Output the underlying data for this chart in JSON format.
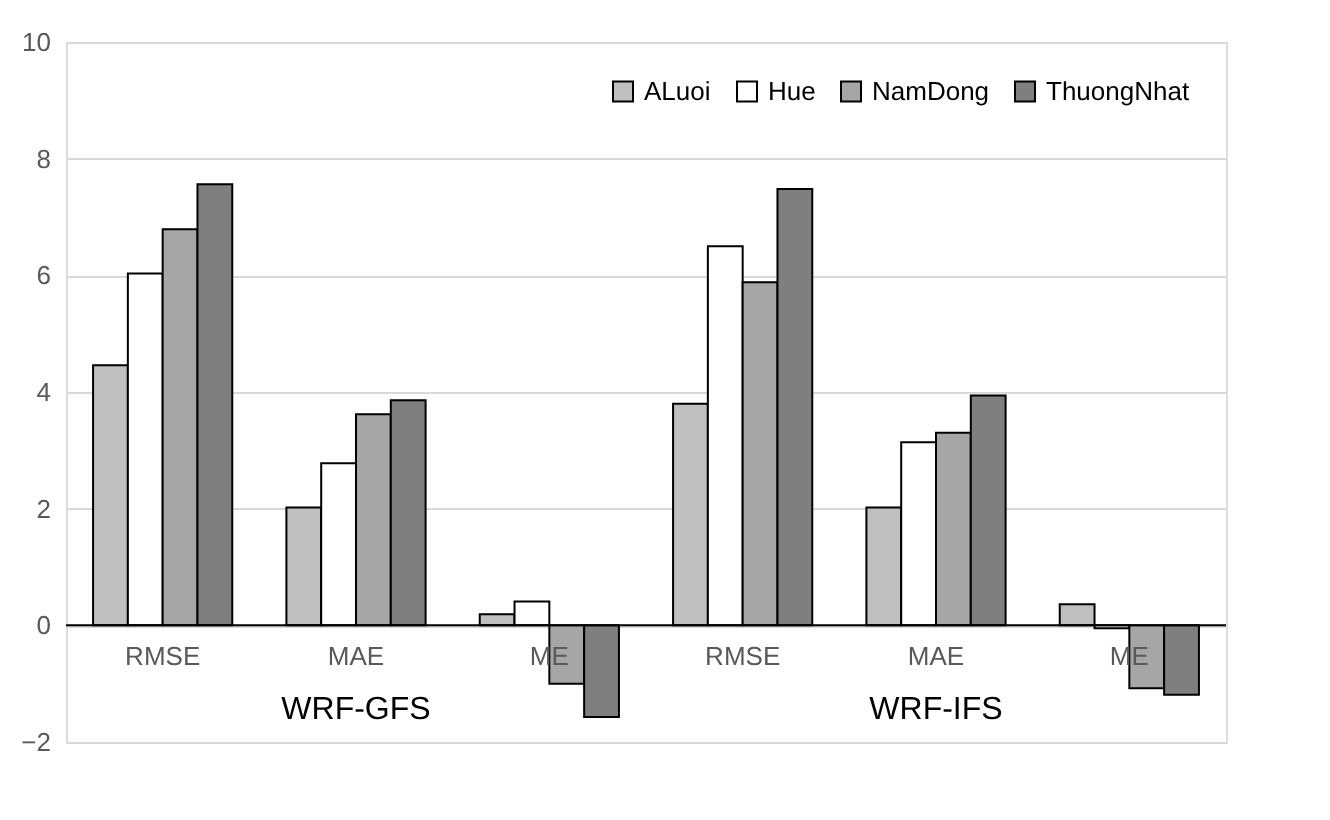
{
  "chart_data": {
    "type": "bar",
    "categories": [
      "RMSE",
      "MAE",
      "ME",
      "RMSE",
      "MAE",
      "ME"
    ],
    "series": [
      {
        "name": "ALuoi",
        "color": "#bfbfbf",
        "values": [
          4.46,
          2.02,
          0.19,
          3.8,
          2.02,
          0.36
        ]
      },
      {
        "name": "Hue",
        "color": "#ffffff",
        "values": [
          6.03,
          2.78,
          0.41,
          6.5,
          3.14,
          -0.05
        ]
      },
      {
        "name": "NamDong",
        "color": "#a6a6a6",
        "values": [
          6.79,
          3.62,
          -1.0,
          5.88,
          3.3,
          -1.08
        ]
      },
      {
        "name": "ThuongNhat",
        "color": "#7f7f7f",
        "values": [
          7.56,
          3.86,
          -1.57,
          7.48,
          3.94,
          -1.19
        ]
      }
    ],
    "annotations": [
      "WRF-GFS",
      "WRF-IFS"
    ],
    "ylim": [
      -2,
      10
    ],
    "yticks": [
      -2,
      0,
      2,
      4,
      6,
      8,
      10
    ],
    "grid": "y",
    "legend": "top right"
  }
}
